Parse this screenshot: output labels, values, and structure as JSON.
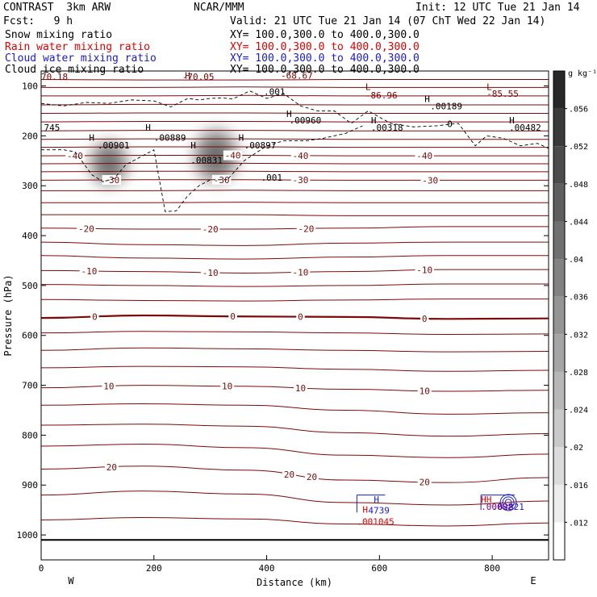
{
  "header": {
    "left_title": "CONTRAST  3km ARW",
    "center_title": "NCAR/MMM",
    "init": "Init: 12 UTC Tue 21 Jan 14",
    "fcst": "Fcst:   9 h",
    "valid": "Valid: 21 UTC Tue 21 Jan 14 (07 ChT Wed 22 Jan 14)"
  },
  "fields": [
    {
      "name": "Snow mixing ratio",
      "xy": "XY= 100.0,300.0 to 400.0,300.0",
      "color": "#000000"
    },
    {
      "name": "Rain water mixing ratio",
      "xy": "XY= 100.0,300.0 to 400.0,300.0",
      "color": "#e00000"
    },
    {
      "name": "Cloud water mixing ratio",
      "xy": "XY= 100.0,300.0 to 400.0,300.0",
      "color": "#1a1ad0"
    },
    {
      "name": "Cloud ice mixing ratio",
      "xy": "XY= 100.0,300.0 to 400.0,300.0",
      "color": "#000000"
    }
  ],
  "chart_data": {
    "type": "contour",
    "xlabel": "Distance (km)",
    "ylabel": "Pressure (hPa)",
    "xlim": [
      0,
      900
    ],
    "ylim": [
      1050,
      70
    ],
    "x_ticks": [
      0,
      200,
      400,
      600,
      800
    ],
    "x_tick_labels": [
      "0",
      "200",
      "400",
      "600",
      "800"
    ],
    "y_ticks": [
      100,
      200,
      300,
      400,
      500,
      600,
      700,
      800,
      900,
      1000
    ],
    "y_tick_labels": [
      "100",
      "200",
      "300",
      "400",
      "500",
      "600",
      "700",
      "800",
      "900",
      "1000"
    ],
    "west_label": "W",
    "east_label": "E",
    "colorbar": {
      "units": "g kg⁻¹",
      "min": 0.008,
      "max": 0.06,
      "tick_values": [
        0.012,
        0.016,
        0.02,
        0.024,
        0.028,
        0.032,
        0.036,
        0.04,
        0.044,
        0.048,
        0.052,
        0.056
      ],
      "tick_labels": [
        ".012",
        ".016",
        ".02",
        ".024",
        ".028",
        ".032",
        ".036",
        ".04",
        ".044",
        ".048",
        ".052",
        ".056"
      ]
    },
    "snow_shading": [
      {
        "x": 120,
        "p": 255,
        "dx": 35,
        "dp": 45,
        "peak": 0.056
      },
      {
        "x": 310,
        "p": 240,
        "dx": 40,
        "dp": 55,
        "peak": 0.056
      }
    ],
    "temperature_contours": [
      {
        "p": [
          87,
          88,
          88,
          87,
          87,
          87
        ],
        "bold": false,
        "labels": []
      },
      {
        "p": [
          103,
          103,
          102,
          103,
          103,
          103
        ],
        "bold": false,
        "labels": []
      },
      {
        "p": [
          120,
          120,
          119,
          120,
          120,
          120
        ],
        "bold": false,
        "labels": []
      },
      {
        "p": [
          138,
          137,
          137,
          138,
          138,
          138
        ],
        "bold": false,
        "labels": []
      },
      {
        "p": [
          155,
          154,
          154,
          155,
          155,
          155
        ],
        "bold": false,
        "labels": []
      },
      {
        "p": [
          172,
          171,
          171,
          172,
          172,
          172
        ],
        "bold": false,
        "labels": []
      },
      {
        "p": [
          190,
          189,
          189,
          190,
          190,
          190
        ],
        "bold": false,
        "labels": []
      },
      {
        "p": [
          207,
          206,
          206,
          207,
          207,
          207
        ],
        "bold": false,
        "labels": []
      },
      {
        "p": [
          223,
          222,
          222,
          223,
          223,
          223
        ],
        "bold": false,
        "labels": []
      },
      {
        "p": [
          240,
          239,
          239,
          240,
          240,
          240
        ],
        "bold": false,
        "labels": [
          {
            "x": 60,
            "text": "-40"
          },
          {
            "x": 340,
            "text": "-40"
          },
          {
            "x": 460,
            "text": "-40"
          },
          {
            "x": 680,
            "text": "-40"
          }
        ]
      },
      {
        "p": [
          256,
          255,
          255,
          256,
          256,
          256
        ],
        "bold": false,
        "labels": []
      },
      {
        "p": [
          272,
          271,
          271,
          272,
          272,
          272
        ],
        "bold": false,
        "labels": []
      },
      {
        "p": [
          289,
          288,
          288,
          289,
          289,
          289
        ],
        "bold": false,
        "labels": [
          {
            "x": 125,
            "text": "-30"
          },
          {
            "x": 320,
            "text": "-30"
          },
          {
            "x": 460,
            "text": "-30"
          },
          {
            "x": 690,
            "text": "-30"
          }
        ]
      },
      {
        "p": [
          310,
          310,
          309,
          310,
          310,
          310
        ],
        "bold": false,
        "labels": []
      },
      {
        "p": [
          334,
          334,
          333,
          334,
          334,
          334
        ],
        "bold": false,
        "labels": []
      },
      {
        "p": [
          358,
          358,
          358,
          360,
          360,
          360
        ],
        "bold": false,
        "labels": []
      },
      {
        "p": [
          385,
          387,
          387,
          385,
          382,
          382
        ],
        "bold": false,
        "labels": [
          {
            "x": 80,
            "text": "-20"
          },
          {
            "x": 300,
            "text": "-20"
          },
          {
            "x": 470,
            "text": "-20"
          }
        ]
      },
      {
        "p": [
          413,
          418,
          420,
          415,
          413,
          413
        ],
        "bold": false,
        "labels": []
      },
      {
        "p": [
          440,
          445,
          447,
          443,
          440,
          440
        ],
        "bold": false,
        "labels": []
      },
      {
        "p": [
          470,
          472,
          475,
          472,
          468,
          468
        ],
        "bold": false,
        "labels": [
          {
            "x": 85,
            "text": "-10"
          },
          {
            "x": 300,
            "text": "-10"
          },
          {
            "x": 460,
            "text": "-10"
          },
          {
            "x": 680,
            "text": "-10"
          }
        ]
      },
      {
        "p": [
          498,
          500,
          502,
          500,
          497,
          497
        ],
        "bold": false,
        "labels": []
      },
      {
        "p": [
          528,
          530,
          531,
          529,
          527,
          527
        ],
        "bold": false,
        "labels": []
      },
      {
        "p": [
          565,
          560,
          562,
          563,
          567,
          566
        ],
        "bold": true,
        "labels": [
          {
            "x": 95,
            "text": "0"
          },
          {
            "x": 340,
            "text": "0"
          },
          {
            "x": 460,
            "text": "0"
          },
          {
            "x": 680,
            "text": "0"
          }
        ]
      },
      {
        "p": [
          595,
          592,
          593,
          595,
          598,
          597
        ],
        "bold": false,
        "labels": []
      },
      {
        "p": [
          630,
          625,
          627,
          630,
          633,
          632
        ],
        "bold": false,
        "labels": []
      },
      {
        "p": [
          665,
          662,
          663,
          668,
          672,
          670
        ],
        "bold": false,
        "labels": []
      },
      {
        "p": [
          705,
          700,
          702,
          708,
          712,
          710
        ],
        "bold": false,
        "labels": [
          {
            "x": 120,
            "text": "10"
          },
          {
            "x": 330,
            "text": "10"
          },
          {
            "x": 460,
            "text": "10"
          },
          {
            "x": 680,
            "text": "10"
          }
        ]
      },
      {
        "p": [
          740,
          737,
          740,
          750,
          758,
          755
        ],
        "bold": false,
        "labels": []
      },
      {
        "p": [
          780,
          778,
          782,
          795,
          802,
          797
        ],
        "bold": false,
        "labels": []
      },
      {
        "p": [
          822,
          818,
          825,
          840,
          845,
          838
        ],
        "bold": false,
        "labels": []
      },
      {
        "p": [
          868,
          862,
          870,
          890,
          895,
          885
        ],
        "bold": false,
        "labels": [
          {
            "x": 125,
            "text": "20"
          },
          {
            "x": 440,
            "text": "20"
          },
          {
            "x": 480,
            "text": "20"
          },
          {
            "x": 680,
            "text": "20"
          }
        ]
      },
      {
        "p": [
          920,
          912,
          918,
          935,
          940,
          932
        ],
        "bold": false,
        "labels": []
      },
      {
        "p": [
          970,
          965,
          968,
          978,
          982,
          976
        ],
        "bold": false,
        "labels": []
      }
    ],
    "surface": {
      "p": 1010
    },
    "cloud_ice_contour": {
      "x": [
        0,
        40,
        80,
        120,
        160,
        200,
        230,
        260,
        280,
        300,
        320,
        340,
        370,
        400,
        430,
        460,
        490,
        520,
        550,
        580,
        620,
        660,
        700,
        740,
        770,
        790,
        820,
        850,
        880,
        900
      ],
      "p": [
        135,
        140,
        133,
        135,
        128,
        130,
        142,
        125,
        128,
        125,
        124,
        126,
        110,
        125,
        115,
        140,
        150,
        150,
        175,
        150,
        175,
        182,
        180,
        175,
        220,
        200,
        205,
        220,
        215,
        225
      ]
    },
    "cloud_ice_lower_contour": {
      "x": [
        0,
        40,
        60,
        90,
        110,
        130,
        150,
        180,
        200,
        220,
        240,
        260,
        280,
        300,
        330,
        360,
        400,
        430,
        470,
        500,
        540,
        570
      ],
      "p": [
        228,
        228,
        232,
        278,
        292,
        285,
        258,
        240,
        228,
        352,
        350,
        320,
        300,
        288,
        288,
        250,
        220,
        210,
        210,
        205,
        195,
        180
      ]
    },
    "annotations": [
      {
        "x": 0,
        "p": 88,
        "text": "70.18",
        "color": "#800000"
      },
      {
        "x": 255,
        "p": 85,
        "text": "H",
        "color": "#800000"
      },
      {
        "x": 250,
        "p": 88,
        "text": "-70.05",
        "color": "#800000"
      },
      {
        "x": 425,
        "p": 85,
        "text": "-68.67",
        "color": "#800000"
      },
      {
        "x": 575,
        "p": 108,
        "text": "L",
        "color": "#800000"
      },
      {
        "x": 575,
        "p": 125,
        "text": "-86.96",
        "color": "#800000"
      },
      {
        "x": 790,
        "p": 108,
        "text": "L",
        "color": "#800000"
      },
      {
        "x": 790,
        "p": 122,
        "text": "-85.55",
        "color": "#800000"
      },
      {
        "x": 395,
        "p": 118,
        "text": ".001",
        "color": "#000000"
      },
      {
        "x": 680,
        "p": 132,
        "text": "H",
        "color": "#000000"
      },
      {
        "x": 690,
        "p": 147,
        "text": ".00189",
        "color": "#000000"
      },
      {
        "x": 435,
        "p": 162,
        "text": "H",
        "color": "#000000"
      },
      {
        "x": 440,
        "p": 175,
        "text": ".00960",
        "color": "#000000"
      },
      {
        "x": 585,
        "p": 175,
        "text": "H",
        "color": "#000000"
      },
      {
        "x": 585,
        "p": 190,
        "text": ".00318",
        "color": "#000000"
      },
      {
        "x": 830,
        "p": 175,
        "text": "H",
        "color": "#000000"
      },
      {
        "x": 830,
        "p": 190,
        "text": ".00482",
        "color": "#000000"
      },
      {
        "x": 720,
        "p": 182,
        "text": "0",
        "color": "#000000"
      },
      {
        "x": 5,
        "p": 190,
        "text": "745",
        "color": "#000000"
      },
      {
        "x": 85,
        "p": 210,
        "text": "H",
        "color": "#000000"
      },
      {
        "x": 100,
        "p": 225,
        "text": ".00901",
        "color": "#000000"
      },
      {
        "x": 185,
        "p": 190,
        "text": "H",
        "color": "#000000"
      },
      {
        "x": 200,
        "p": 210,
        "text": ".00889",
        "color": "#000000"
      },
      {
        "x": 350,
        "p": 210,
        "text": "H",
        "color": "#000000"
      },
      {
        "x": 360,
        "p": 225,
        "text": ".00897",
        "color": "#000000"
      },
      {
        "x": 265,
        "p": 225,
        "text": "H",
        "color": "#000000"
      },
      {
        "x": 265,
        "p": 255,
        "text": ".00831",
        "color": "#000000"
      },
      {
        "x": 390,
        "p": 290,
        "text": ".001",
        "color": "#000000"
      }
    ],
    "blue_box_contours": [
      {
        "x0": 560,
        "x1": 610,
        "p0": 920,
        "p1": 955,
        "color": "#1a1ad0"
      },
      {
        "x0": 780,
        "x1": 840,
        "p0": 920,
        "p1": 950,
        "color": "#1a1ad0"
      }
    ],
    "blue_annotations": [
      {
        "x": 590,
        "p": 935,
        "text": "H",
        "color": "#1a1ad0"
      },
      {
        "x": 580,
        "p": 957,
        "text": "4739",
        "color": "#1a1ad0"
      },
      {
        "x": 800,
        "p": 950,
        "text": ".02821",
        "color": "#1a1ad0"
      }
    ],
    "red_annotations": [
      {
        "x": 570,
        "p": 955,
        "text": "H",
        "color": "#e00000"
      },
      {
        "x": 560,
        "p": 980,
        "text": ".001045",
        "color": "#e00000"
      },
      {
        "x": 780,
        "p": 935,
        "text": "HH",
        "color": "#e00000"
      },
      {
        "x": 780,
        "p": 950,
        "text": ".00002",
        "color": "#800080"
      }
    ]
  }
}
